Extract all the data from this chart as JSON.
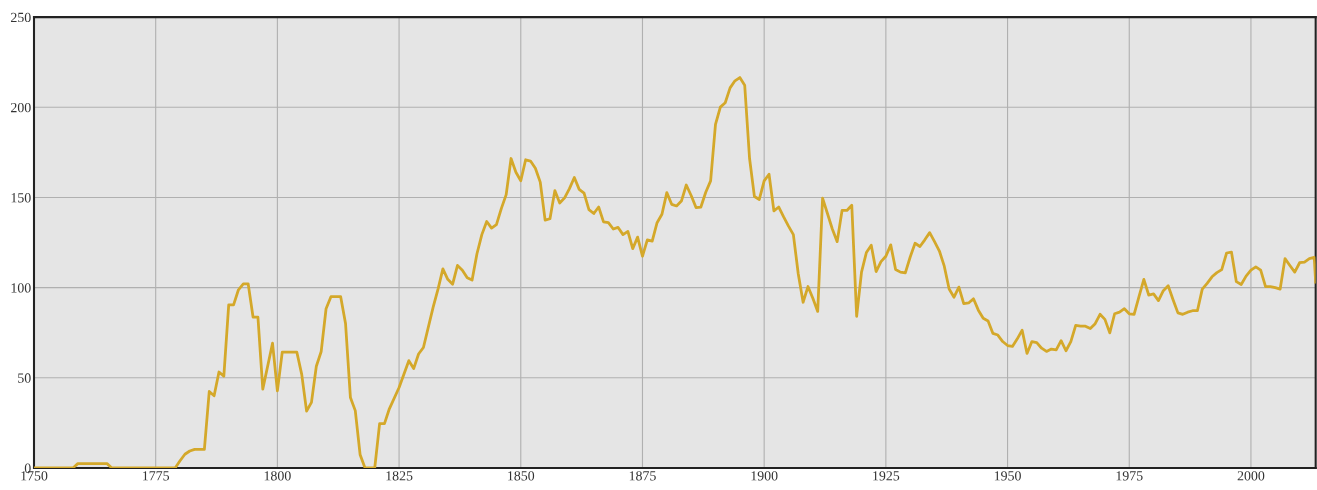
{
  "chart_data": {
    "type": "line",
    "xlim": [
      1750,
      2013.3
    ],
    "ylim": [
      0,
      250
    ],
    "xticks": [
      1750,
      1775,
      1800,
      1825,
      1850,
      1875,
      1900,
      1925,
      1950,
      1975,
      2000
    ],
    "yticks": [
      0,
      50,
      100,
      150,
      200,
      250
    ],
    "grid": true,
    "marker": "none",
    "line_style": "solid",
    "series": [
      {
        "color": "#d4a82a",
        "x": [
          1750,
          1758,
          1759,
          1765,
          1766,
          1779,
          1780,
          1781,
          1782,
          1783,
          1785,
          1786,
          1787,
          1788,
          1789,
          1790,
          1791,
          1792,
          1793,
          1794,
          1795,
          1796,
          1797,
          1799,
          1800,
          1801,
          1804,
          1805,
          1806,
          1807,
          1808,
          1809,
          1810,
          1811,
          1813,
          1814,
          1815,
          1816,
          1817,
          1818,
          1820,
          1821,
          1822,
          1823,
          1825,
          1827,
          1828,
          1829,
          1830,
          1832,
          1833,
          1834,
          1835,
          1836,
          1837,
          1838,
          1839,
          1840,
          1841,
          1842,
          1843,
          1844,
          1845,
          1846,
          1847,
          1848,
          1849,
          1850,
          1851,
          1852,
          1853,
          1854,
          1855,
          1856,
          1857,
          1858,
          1859,
          1860,
          1861,
          1862,
          1863,
          1864,
          1865,
          1866,
          1867,
          1868,
          1869,
          1870,
          1871,
          1872,
          1873,
          1874,
          1875,
          1876,
          1877,
          1878,
          1879,
          1880,
          1881,
          1882,
          1883,
          1884,
          1885,
          1886,
          1887,
          1888,
          1889,
          1890,
          1891,
          1892,
          1893,
          1894,
          1895,
          1896,
          1897,
          1898,
          1899,
          1900,
          1901,
          1902,
          1903,
          1904,
          1905,
          1906,
          1907,
          1908,
          1909,
          1910,
          1911,
          1912,
          1913,
          1914,
          1915,
          1916,
          1917,
          1918,
          1919,
          1920,
          1921,
          1922,
          1923,
          1924,
          1925,
          1926,
          1927,
          1928,
          1929,
          1930,
          1931,
          1932,
          1933,
          1934,
          1935,
          1936,
          1937,
          1938,
          1939,
          1940,
          1941,
          1942,
          1943,
          1944,
          1945,
          1946,
          1947,
          1948,
          1949,
          1950,
          1951,
          1952,
          1953,
          1954,
          1955,
          1956,
          1957,
          1958,
          1959,
          1960,
          1961,
          1962,
          1963,
          1964,
          1965,
          1966,
          1967,
          1968,
          1969,
          1970,
          1971,
          1972,
          1973,
          1974,
          1975,
          1976,
          1977,
          1978,
          1979,
          1980,
          1981,
          1982,
          1983,
          1984,
          1985,
          1986,
          1987,
          1988,
          1989,
          1990,
          1991,
          1992,
          1993,
          1994,
          1995,
          1996,
          1997,
          1998,
          1999,
          2000,
          2001,
          2002,
          2003,
          2004,
          2005,
          2006,
          2007,
          2008,
          2009,
          2010,
          2011,
          2012,
          2013,
          2013.3
        ],
        "values": [
          0,
          0,
          2.4,
          2.4,
          0,
          0,
          4,
          7.6,
          9.4,
          10.3,
          10.3,
          42.4,
          40,
          53.2,
          50.9,
          90.4,
          90.4,
          98.8,
          102.1,
          102.1,
          83.7,
          83.7,
          43.7,
          69.2,
          42.8,
          64.2,
          64.2,
          51.9,
          31.5,
          36.4,
          56.4,
          64.6,
          88.3,
          95,
          95,
          80.1,
          39.1,
          31.8,
          7.3,
          0,
          0,
          24.6,
          24.6,
          32.8,
          44.6,
          59.5,
          55.1,
          63.2,
          66.8,
          89.2,
          99.2,
          110.4,
          104.6,
          101.9,
          112.3,
          109.7,
          105.5,
          104.2,
          118.8,
          129.4,
          136.7,
          133,
          134.9,
          143.8,
          151.6,
          171.6,
          164,
          159.3,
          170.9,
          170.2,
          166.2,
          158.5,
          137.4,
          138.2,
          153.8,
          146.9,
          149.8,
          154.9,
          161.1,
          154.5,
          152.4,
          143.3,
          141.1,
          144.7,
          136.5,
          136,
          132.5,
          133.4,
          129.4,
          131.2,
          121.6,
          128,
          117.4,
          126.5,
          125.8,
          136,
          140.7,
          152.7,
          146.2,
          145.3,
          148,
          156.9,
          151.1,
          144.4,
          144.7,
          152.9,
          159.2,
          190.5,
          200.1,
          202.5,
          210.8,
          214.7,
          216.5,
          212.3,
          171.6,
          150.5,
          148.9,
          159.2,
          162.9,
          142.6,
          144.7,
          139.2,
          134.1,
          129.4,
          107.7,
          91.9,
          100.6,
          94.1,
          86.8,
          149.6,
          141.1,
          132.5,
          125.5,
          142.8,
          142.8,
          145.7,
          84.1,
          108.6,
          119.5,
          123.5,
          108.9,
          114.4,
          117.4,
          123.7,
          110.1,
          108.6,
          108.2,
          117,
          124.6,
          122.8,
          126.5,
          130.5,
          125.5,
          120.3,
          111.9,
          99.2,
          94.7,
          100.3,
          91.1,
          91.5,
          93.8,
          87.5,
          83,
          81.5,
          74.6,
          73.7,
          70.1,
          67.9,
          67.4,
          71.6,
          76.4,
          63.5,
          70.1,
          69.5,
          66.4,
          64.6,
          65.9,
          65.5,
          70.6,
          65,
          70.1,
          79.1,
          78.7,
          78.6,
          77.3,
          80,
          85.2,
          82.4,
          74.9,
          85.5,
          86.4,
          88.3,
          85.5,
          85.2,
          95,
          104.6,
          95.9,
          96.5,
          92.8,
          98.3,
          101,
          93.3,
          86,
          85.2,
          86.4,
          87.2,
          87.2,
          99.2,
          102.4,
          106,
          108.3,
          110,
          119.2,
          119.7,
          103.3,
          101.7,
          106.4,
          109.7,
          111.5,
          109.7,
          100.6,
          100.6,
          100,
          99.2,
          116.1,
          112.3,
          108.6,
          113.8,
          114.2,
          116.1,
          116.8,
          103
        ]
      }
    ]
  }
}
